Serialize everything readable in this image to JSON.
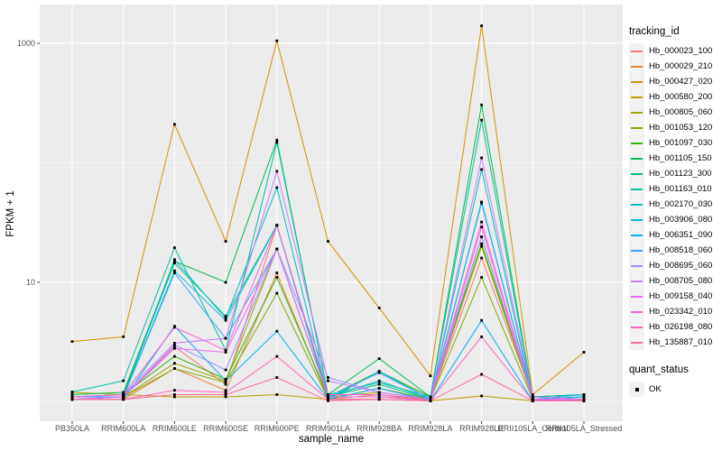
{
  "figure": {
    "background": "#FFFFFF",
    "panel_background": "#EBEBEB",
    "gridline_color": "#FFFFFF",
    "axis_text_color": "#4D4D4D",
    "point_color": "#000000",
    "legend_key_fill": "#F2F2F2"
  },
  "axes": {
    "x_title": "sample_name",
    "y_title": "FPKM + 1",
    "y_tick_labels": [
      "1000",
      "10"
    ]
  },
  "legend": {
    "title": "tracking_id"
  },
  "quant_legend": {
    "title": "quant_status",
    "item_label": "OK"
  },
  "chart_data": {
    "type": "line",
    "title": "",
    "xlabel": "sample_name",
    "ylabel": "FPKM + 1",
    "y_scale": "log10",
    "ylim": [
      1,
      1500
    ],
    "y_major_breaks": [
      10,
      1000
    ],
    "y_minor_breaks": [
      1,
      100
    ],
    "grid": true,
    "legend_position": "right",
    "legend_title": "tracking_id",
    "quant_status_legend": {
      "title": "quant_status",
      "items": [
        "OK"
      ]
    },
    "point_shape": "filled-square",
    "categories": [
      "PB350LA",
      "RRIM600LA",
      "RRIM600LE",
      "RRIM600SE",
      "RRIM600PE",
      "RRIM901LA",
      "RRIM928BA",
      "RRIM928LA",
      "RRIM928LE",
      "RRII105LA_Control",
      "RRII105LA_Stressed"
    ],
    "y_values_note": "FPKM + 1, estimated from log-scale plot",
    "series": [
      {
        "name": "Hb_000023_100",
        "color": "#F8766D",
        "values": [
          1.1,
          1.1,
          2.9,
          1.4,
          30,
          1.1,
          1.1,
          1.05,
          16,
          1.1,
          1.05
        ]
      },
      {
        "name": "Hb_000029_210",
        "color": "#EA8331",
        "values": [
          1.05,
          1.05,
          1.9,
          1.25,
          12,
          1.05,
          1.15,
          1.02,
          24,
          1.05,
          1.02
        ]
      },
      {
        "name": "Hb_000427_020",
        "color": "#D89000",
        "values": [
          3.2,
          3.5,
          210,
          22,
          1050,
          22,
          6.1,
          1.65,
          1400,
          1.15,
          2.6
        ]
      },
      {
        "name": "Hb_000580_200",
        "color": "#C09B00",
        "values": [
          1.2,
          1.15,
          1.1,
          1.1,
          1.15,
          1.05,
          1.05,
          1.02,
          1.12,
          1.02,
          1.02
        ]
      },
      {
        "name": "Hb_000805_060",
        "color": "#A3A500",
        "values": [
          1.1,
          1.1,
          2.1,
          1.5,
          19,
          1.1,
          1.2,
          1.05,
          20,
          1.05,
          1.05
        ]
      },
      {
        "name": "Hb_001053_120",
        "color": "#7CAE00",
        "values": [
          1.05,
          1.1,
          1.9,
          1.45,
          8.1,
          1.05,
          1.3,
          1.05,
          11,
          1.05,
          1.1
        ]
      },
      {
        "name": "Hb_001097_030",
        "color": "#39B600",
        "values": [
          1.1,
          1.15,
          2.4,
          1.55,
          11,
          1.1,
          1.8,
          1.1,
          21,
          1.1,
          1.15
        ]
      },
      {
        "name": "Hb_001105_150",
        "color": "#00BB4E",
        "values": [
          1.15,
          1.2,
          15,
          10,
          155,
          1.15,
          2.3,
          1.1,
          305,
          1.1,
          1.15
        ]
      },
      {
        "name": "Hb_001123_300",
        "color": "#00BF7D",
        "values": [
          1.1,
          1.15,
          14.5,
          5.2,
          30,
          1.1,
          1.4,
          1.05,
          47,
          1.05,
          1.1
        ]
      },
      {
        "name": "Hb_001163_010",
        "color": "#00C1A3",
        "values": [
          1.21,
          1.5,
          19.5,
          2.7,
          148,
          1.15,
          1.45,
          1.1,
          228,
          1.1,
          1.15
        ]
      },
      {
        "name": "Hb_002170_030",
        "color": "#00BFC4",
        "values": [
          1.1,
          1.1,
          15.5,
          5.0,
          62,
          1.1,
          1.5,
          1.05,
          88,
          1.05,
          1.1
        ]
      },
      {
        "name": "Hb_003906_080",
        "color": "#00BAE0",
        "values": [
          1.05,
          1.1,
          12.5,
          4.8,
          30,
          1.05,
          1.8,
          1.05,
          47,
          1.05,
          1.1
        ]
      },
      {
        "name": "Hb_006351_090",
        "color": "#00B0F6",
        "values": [
          1.05,
          1.05,
          4.3,
          1.5,
          3.9,
          1.05,
          1.3,
          1.02,
          4.8,
          1.02,
          1.05
        ]
      },
      {
        "name": "Hb_008518_060",
        "color": "#35A2FF",
        "values": [
          1.1,
          1.1,
          12,
          3.4,
          19,
          1.1,
          1.75,
          1.05,
          46,
          1.05,
          1.15
        ]
      },
      {
        "name": "Hb_008695_060",
        "color": "#9590FF",
        "values": [
          1.05,
          1.1,
          3.0,
          1.85,
          19,
          1.6,
          1.2,
          1.05,
          24,
          1.05,
          1.05
        ]
      },
      {
        "name": "Hb_008705_080",
        "color": "#C77CFF",
        "values": [
          1.1,
          1.15,
          3.1,
          3.4,
          85,
          1.5,
          1.2,
          1.05,
          110,
          1.1,
          1.05
        ]
      },
      {
        "name": "Hb_009158_040",
        "color": "#E76BF3",
        "values": [
          1.05,
          1.1,
          2.8,
          2.6,
          19,
          1.1,
          1.1,
          1.02,
          29,
          1.05,
          1.02
        ]
      },
      {
        "name": "Hb_023342_010",
        "color": "#FA62DB",
        "values": [
          1.1,
          1.15,
          4.2,
          2.7,
          30,
          1.15,
          1.15,
          1.05,
          32,
          1.05,
          1.05
        ]
      },
      {
        "name": "Hb_026198_080",
        "color": "#FF62BC",
        "values": [
          1.05,
          1.05,
          1.25,
          1.2,
          2.4,
          1.05,
          1.05,
          1.02,
          3.5,
          1.02,
          1.02
        ]
      },
      {
        "name": "Hb_135887_010",
        "color": "#FF6A98",
        "values": [
          1.05,
          1.05,
          1.15,
          1.15,
          1.6,
          1.02,
          1.05,
          1.02,
          1.7,
          1.02,
          1.02
        ]
      }
    ]
  }
}
